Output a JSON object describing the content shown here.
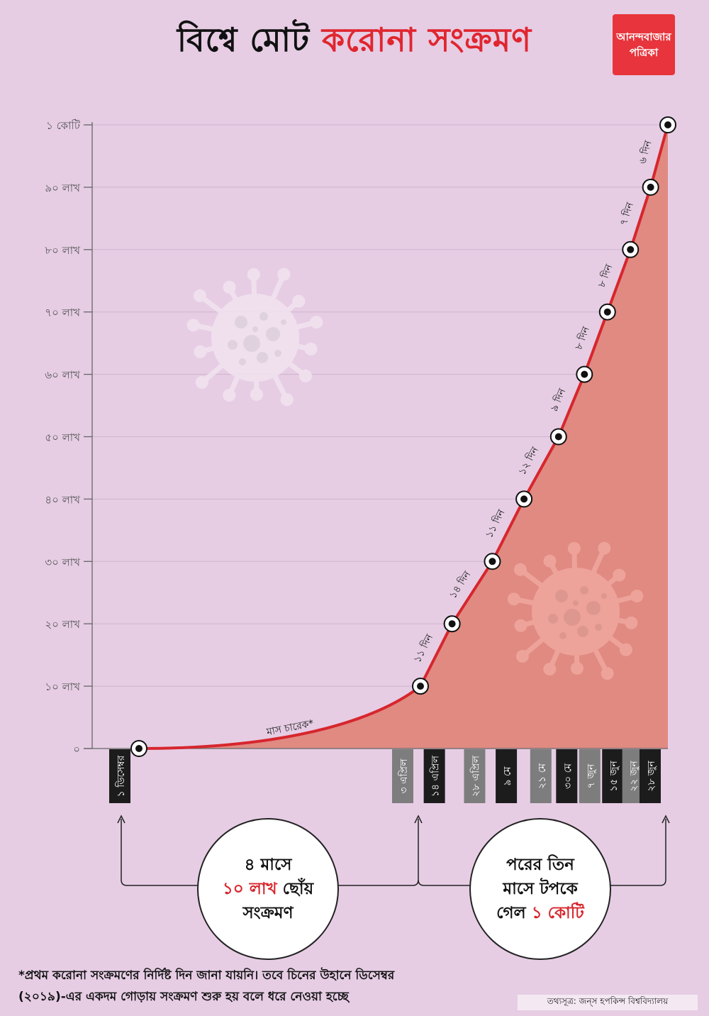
{
  "header": {
    "title_black": "বিশ্বে মোট",
    "title_red": "করোনা সংক্রমণ",
    "logo_line1": "আনন্দবাজার",
    "logo_line2": "পত্রিকা"
  },
  "colors": {
    "background": "#e6cde4",
    "accent_red": "#d7262d",
    "area_fill": "#e08a82",
    "dark_label": "#1c1c1c",
    "grey_label": "#7d7d7d"
  },
  "chart_data": {
    "type": "area",
    "title": "বিশ্বে মোট করোনা সংক্রমণ",
    "ylim": [
      0,
      100
    ],
    "y_ticks": [
      {
        "value": 0,
        "label": "০"
      },
      {
        "value": 10,
        "label": "১০ লাখ"
      },
      {
        "value": 20,
        "label": "২০ লাখ"
      },
      {
        "value": 30,
        "label": "৩০ লাখ"
      },
      {
        "value": 40,
        "label": "৪০ লাখ"
      },
      {
        "value": 50,
        "label": "৫০ লাখ"
      },
      {
        "value": 60,
        "label": "৬০ লাখ"
      },
      {
        "value": 70,
        "label": "৭০ লাখ"
      },
      {
        "value": 80,
        "label": "৮০ লাখ"
      },
      {
        "value": 90,
        "label": "৯০ লাখ"
      },
      {
        "value": 100,
        "label": "১ কোটি"
      }
    ],
    "grid": true,
    "points": [
      {
        "date": "2019-12-01",
        "value": 0,
        "label": "১ ডিসেম্বর",
        "label_style": "dark"
      },
      {
        "date": "2020-04-03",
        "value": 10,
        "label": "৩ এপ্রিল",
        "label_style": "grey"
      },
      {
        "date": "2020-04-14",
        "value": 20,
        "label": "১৪ এপ্রিল",
        "label_style": "dark"
      },
      {
        "date": "2020-04-28",
        "value": 30,
        "label": "২৮ এপ্রিল",
        "label_style": "grey"
      },
      {
        "date": "2020-05-09",
        "value": 40,
        "label": "৯ মে",
        "label_style": "dark"
      },
      {
        "date": "2020-05-21",
        "value": 50,
        "label": "২১ মে",
        "label_style": "grey"
      },
      {
        "date": "2020-05-30",
        "value": 60,
        "label": "৩০ মে",
        "label_style": "dark"
      },
      {
        "date": "2020-06-07",
        "value": 70,
        "label": "৭ জুন",
        "label_style": "grey"
      },
      {
        "date": "2020-06-15",
        "value": 80,
        "label": "১৫ জুন",
        "label_style": "dark"
      },
      {
        "date": "2020-06-22",
        "value": 90,
        "label": "২২ জুন",
        "label_style": "grey"
      },
      {
        "date": "2020-06-28",
        "value": 100,
        "label": "২৮ জুন",
        "label_style": "dark"
      }
    ],
    "segment_annotations": [
      {
        "label": "মাস চারেক*"
      },
      {
        "label": "১১ দিন"
      },
      {
        "label": "১৪ দিন"
      },
      {
        "label": "১১ দিন"
      },
      {
        "label": "১২ দিন"
      },
      {
        "label": "৯ দিন"
      },
      {
        "label": "৮ দিন"
      },
      {
        "label": "৮ দিন"
      },
      {
        "label": "৭ দিন"
      },
      {
        "label": "৬ দিন"
      }
    ]
  },
  "callouts": {
    "left": {
      "line1": "৪ মাসে",
      "line2_red": "১০ লাখ",
      "line2_rest": " ছোঁয়",
      "line3": "সংক্রমণ"
    },
    "right": {
      "line1": "পরের তিন",
      "line2": "মাসে টপকে",
      "line3_prefix": "গেল ",
      "line3_red": "১ কোটি"
    }
  },
  "footnote": {
    "line1": "*প্রথম করোনা সংক্রমণের নির্দিষ্ট দিন জানা যায়নি। তবে চিনের উহানে ডিসেম্বর",
    "line2": "(২০১৯)-এর একদম গোড়ায় সংক্রমণ শুরু হয় বলে ধরে নেওয়া হচ্ছে"
  },
  "source": "তথ্যসূত্র: জন্‌স হপকিন্স বিশ্ববিদ্যালয়"
}
